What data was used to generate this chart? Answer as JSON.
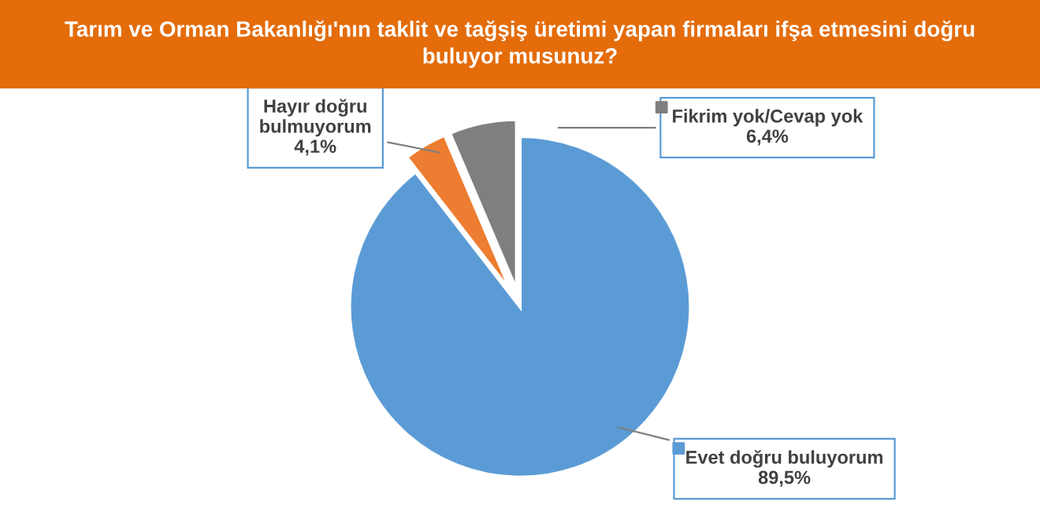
{
  "chart_data": {
    "type": "pie",
    "title": "Tarım ve Orman Bakanlığı'nın taklit ve tağşiş üretimi yapan firmaları ifşa etmesini doğru\nbuluyor musunuz?",
    "categories": [
      "Evet doğru buluyorum",
      "Hayır doğru\nbulmuyorum",
      "Fikrim yok/Cevap yok"
    ],
    "values": [
      89.5,
      4.1,
      6.4
    ],
    "value_labels": [
      "89,5%",
      "4,1%",
      "6,4%"
    ],
    "colors": [
      "#5b9bd5",
      "#ed7d31",
      "#7f7f7f"
    ],
    "legend": "right"
  }
}
